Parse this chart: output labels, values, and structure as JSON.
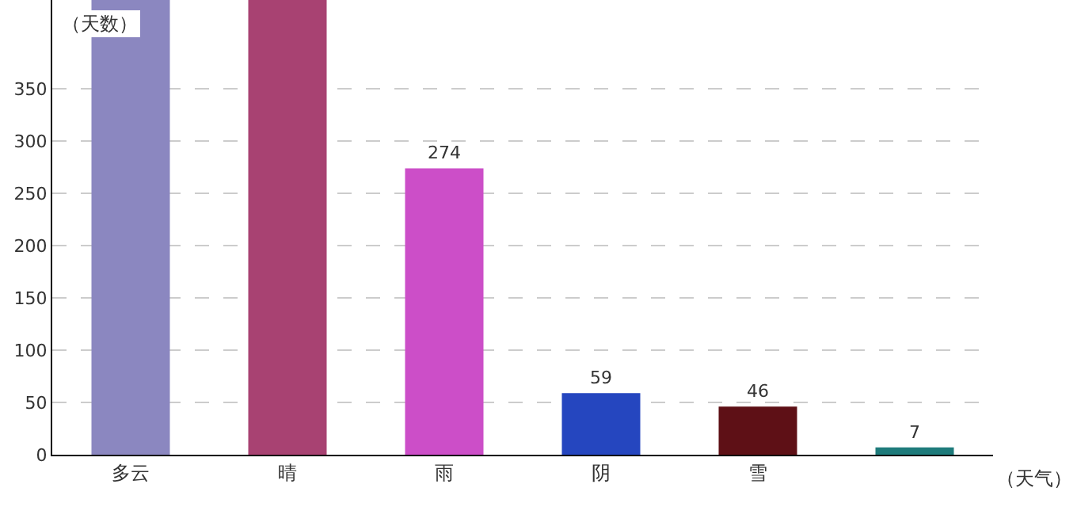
{
  "chart_data": {
    "type": "bar",
    "xlabel": "（天气）",
    "ylabel": "（天数）",
    "categories": [
      "多云",
      "晴",
      "雨",
      "阴",
      "雪",
      null
    ],
    "values": [
      435,
      435,
      274,
      59,
      46,
      7
    ],
    "colors": [
      "#8b87c0",
      "#a84272",
      "#cc4ec8",
      "#2546bf",
      "#5e1016",
      "#1e7b7b"
    ],
    "value_labels": [
      null,
      null,
      "274",
      "59",
      "46",
      "7"
    ],
    "ylim": [
      0,
      435
    ],
    "yticks": [
      0,
      50,
      100,
      150,
      200,
      250,
      300,
      350
    ],
    "grid": "y",
    "legend": false
  }
}
